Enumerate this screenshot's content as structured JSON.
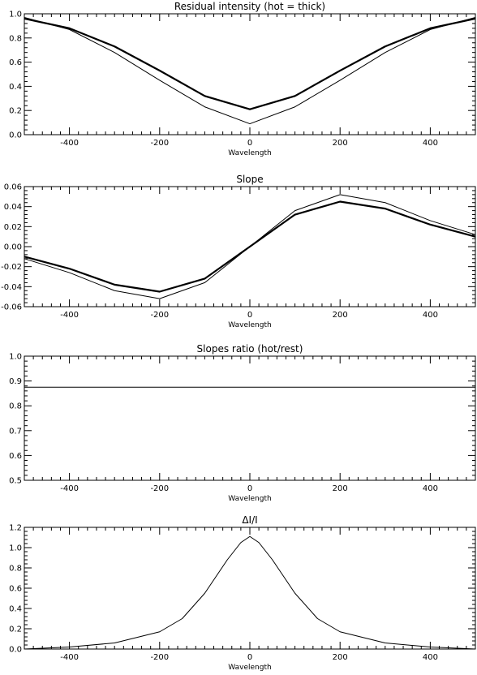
{
  "chart_data": [
    {
      "type": "line",
      "title": "Residual intensity (hot = thick)",
      "xlabel": "Wavelength",
      "ylabel": "",
      "xlim": [
        -500,
        500
      ],
      "ylim": [
        0.0,
        1.0
      ],
      "xticks": [
        -400,
        -200,
        0,
        200,
        400
      ],
      "yticks": [
        0.0,
        0.2,
        0.4,
        0.6,
        0.8,
        1.0
      ],
      "ytick_labels": [
        "0.0",
        "0.2",
        "0.4",
        "0.6",
        "0.8",
        "1.0"
      ],
      "series": [
        {
          "style": "thick",
          "x": [
            -500,
            -400,
            -300,
            -200,
            -100,
            0,
            100,
            200,
            300,
            400,
            500
          ],
          "y": [
            0.96,
            0.88,
            0.73,
            0.53,
            0.32,
            0.21,
            0.32,
            0.53,
            0.73,
            0.88,
            0.96
          ]
        },
        {
          "style": "thin",
          "x": [
            -500,
            -400,
            -300,
            -200,
            -100,
            0,
            100,
            200,
            300,
            400,
            500
          ],
          "y": [
            0.97,
            0.87,
            0.68,
            0.45,
            0.23,
            0.09,
            0.23,
            0.45,
            0.68,
            0.87,
            0.97
          ]
        }
      ]
    },
    {
      "type": "line",
      "title": "Slope",
      "xlabel": "Wavelength",
      "ylabel": "",
      "xlim": [
        -500,
        500
      ],
      "ylim": [
        -0.06,
        0.06
      ],
      "xticks": [
        -400,
        -200,
        0,
        200,
        400
      ],
      "yticks": [
        -0.06,
        -0.04,
        -0.02,
        0.0,
        0.02,
        0.04,
        0.06
      ],
      "ytick_labels": [
        "-0.06",
        "-0.04",
        "-0.02",
        "0.00",
        "0.02",
        "0.04",
        "0.06"
      ],
      "series": [
        {
          "style": "thick",
          "x": [
            -500,
            -400,
            -300,
            -200,
            -100,
            0,
            100,
            200,
            300,
            400,
            500
          ],
          "y": [
            -0.01,
            -0.022,
            -0.038,
            -0.045,
            -0.032,
            0.0,
            0.032,
            0.045,
            0.038,
            0.022,
            0.01
          ]
        },
        {
          "style": "thin",
          "x": [
            -500,
            -400,
            -300,
            -200,
            -100,
            0,
            100,
            200,
            300,
            400,
            500
          ],
          "y": [
            -0.012,
            -0.026,
            -0.044,
            -0.052,
            -0.036,
            0.0,
            0.036,
            0.052,
            0.044,
            0.026,
            0.012
          ]
        }
      ]
    },
    {
      "type": "line",
      "title": "Slopes ratio (hot/rest)",
      "xlabel": "Wavelength",
      "ylabel": "",
      "xlim": [
        -500,
        500
      ],
      "ylim": [
        0.5,
        1.0
      ],
      "xticks": [
        -400,
        -200,
        0,
        200,
        400
      ],
      "yticks": [
        0.5,
        0.6,
        0.7,
        0.8,
        0.9,
        1.0
      ],
      "ytick_labels": [
        "0.5",
        "0.6",
        "0.7",
        "0.8",
        "0.9",
        "1.0"
      ],
      "series": [
        {
          "style": "thin",
          "x": [
            -500,
            500
          ],
          "y": [
            0.875,
            0.875
          ]
        }
      ]
    },
    {
      "type": "line",
      "title": "ΔI/I",
      "xlabel": "Wavelength",
      "ylabel": "",
      "xlim": [
        -500,
        500
      ],
      "ylim": [
        0.0,
        1.2
      ],
      "xticks": [
        -400,
        -200,
        0,
        200,
        400
      ],
      "yticks": [
        0.0,
        0.2,
        0.4,
        0.6,
        0.8,
        1.0,
        1.2
      ],
      "ytick_labels": [
        "0.0",
        "0.2",
        "0.4",
        "0.6",
        "0.8",
        "1.0",
        "1.2"
      ],
      "series": [
        {
          "style": "thin",
          "x": [
            -500,
            -400,
            -300,
            -200,
            -150,
            -100,
            -50,
            -20,
            0,
            20,
            50,
            100,
            150,
            200,
            300,
            400,
            500
          ],
          "y": [
            0.0,
            0.02,
            0.06,
            0.17,
            0.3,
            0.55,
            0.88,
            1.05,
            1.11,
            1.05,
            0.88,
            0.55,
            0.3,
            0.17,
            0.06,
            0.02,
            0.0
          ]
        }
      ]
    }
  ]
}
